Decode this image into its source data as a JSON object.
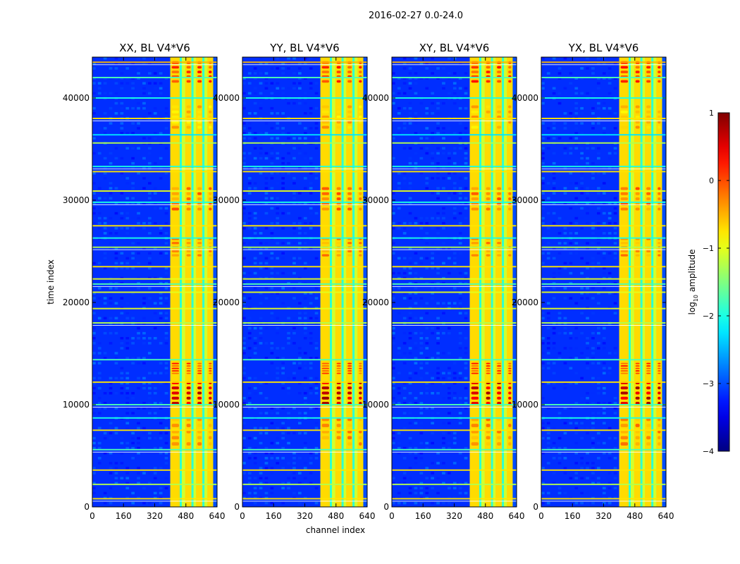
{
  "chart_data": {
    "type": "heatmap",
    "suptitle": "2016-02-27 0.0-24.0",
    "xlabel": "channel index",
    "ylabel": "time index",
    "xlim": [
      0,
      640
    ],
    "ylim": [
      0,
      44000
    ],
    "xticks": [
      0,
      160,
      320,
      480,
      640
    ],
    "yticks": [
      0,
      10000,
      20000,
      30000,
      40000
    ],
    "panels": [
      {
        "title": "XX, BL V4*V6",
        "band_start": 400
      },
      {
        "title": "YY, BL V4*V6",
        "band_start": 400
      },
      {
        "title": "XY, BL V4*V6",
        "band_start": 400
      },
      {
        "title": "YX, BL V4*V6",
        "band_start": 400
      }
    ],
    "colorbar": {
      "label_prefix": "log",
      "label_sub": "10",
      "label_suffix": " amplitude",
      "range": [
        -4,
        1
      ],
      "ticks": [
        {
          "value": 1,
          "label": "1"
        },
        {
          "value": 0,
          "label": "0"
        },
        {
          "value": -1,
          "label": "−1"
        },
        {
          "value": -2,
          "label": "−2"
        },
        {
          "value": -3,
          "label": "−3"
        },
        {
          "value": -4,
          "label": "−4"
        }
      ],
      "colormap": "jet"
    },
    "rfi_rows": [
      {
        "t": 43500,
        "level": 0.6
      },
      {
        "t": 42000,
        "level": 0.35
      },
      {
        "t": 40000,
        "level": 0.3
      },
      {
        "t": 38000,
        "level": 0.55
      },
      {
        "t": 36400,
        "level": 0.25
      },
      {
        "t": 35600,
        "level": 0.45
      },
      {
        "t": 33300,
        "level": 0.3
      },
      {
        "t": 32800,
        "level": 0.55
      },
      {
        "t": 30900,
        "level": 0.5
      },
      {
        "t": 29800,
        "level": 0.3
      },
      {
        "t": 27500,
        "level": 0.55
      },
      {
        "t": 26300,
        "level": 0.3
      },
      {
        "t": 25400,
        "level": 0.45
      },
      {
        "t": 23500,
        "level": 0.55
      },
      {
        "t": 22300,
        "level": 0.5
      },
      {
        "t": 21800,
        "level": 0.35
      },
      {
        "t": 21000,
        "level": 0.5
      },
      {
        "t": 19400,
        "level": 0.5
      },
      {
        "t": 18000,
        "level": 0.45
      },
      {
        "t": 14400,
        "level": 0.35
      },
      {
        "t": 12200,
        "level": 0.55
      },
      {
        "t": 10000,
        "level": 0.35
      },
      {
        "t": 8700,
        "level": 0.3
      },
      {
        "t": 7500,
        "level": 0.55
      },
      {
        "t": 5600,
        "level": 0.35
      },
      {
        "t": 3600,
        "level": 0.55
      },
      {
        "t": 2200,
        "level": 0.45
      },
      {
        "t": 800,
        "level": 0.55
      }
    ]
  }
}
